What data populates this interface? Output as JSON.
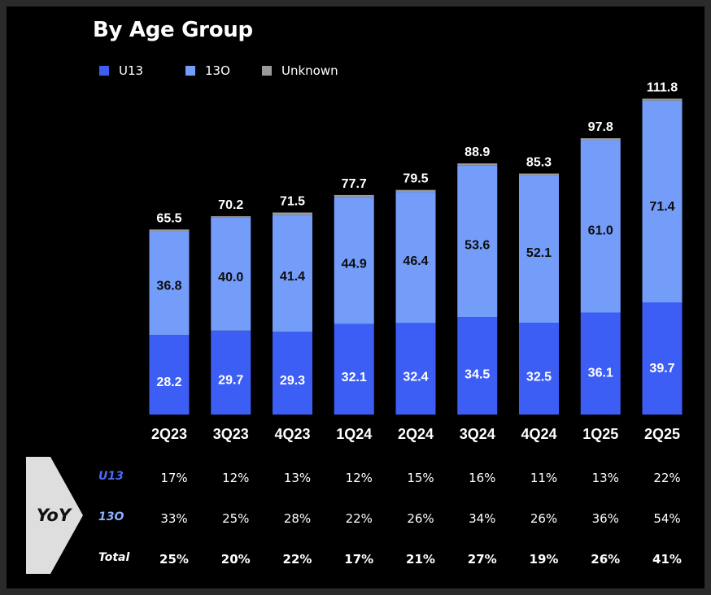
{
  "title": "By Age Group",
  "colors": {
    "U13": "#3c5ef5",
    "13O": "#749cf9",
    "Unknown": "#9a9a9a",
    "row_label_U13": "#4a6cf7",
    "row_label_13O": "#8fb0ff",
    "yoy_box": "#dedede"
  },
  "legend": [
    {
      "label": "U13",
      "color": "#3c5ef5"
    },
    {
      "label": "13O",
      "color": "#749cf9"
    },
    {
      "label": "Unknown",
      "color": "#9a9a9a"
    }
  ],
  "chart_data": {
    "type": "bar",
    "stacked": true,
    "title": "By Age Group",
    "categories": [
      "2Q23",
      "3Q23",
      "4Q23",
      "1Q24",
      "2Q24",
      "3Q24",
      "4Q24",
      "1Q25",
      "2Q25"
    ],
    "series": [
      {
        "name": "U13",
        "values": [
          28.2,
          29.7,
          29.3,
          32.1,
          32.4,
          34.5,
          32.5,
          36.1,
          39.7
        ]
      },
      {
        "name": "13O",
        "values": [
          36.8,
          40.0,
          41.4,
          44.9,
          46.4,
          53.6,
          52.1,
          61.0,
          71.4
        ]
      },
      {
        "name": "Unknown",
        "values": [
          0.5,
          0.5,
          0.8,
          0.7,
          0.7,
          0.8,
          0.7,
          0.7,
          0.7
        ]
      }
    ],
    "totals": [
      "65.5",
      "70.2",
      "71.5",
      "77.7",
      "79.5",
      "88.9",
      "85.3",
      "97.8",
      "111.8"
    ],
    "u13_labels": [
      "28.2",
      "29.7",
      "29.3",
      "32.1",
      "32.4",
      "34.5",
      "32.5",
      "36.1",
      "39.7"
    ],
    "o13_labels": [
      "36.8",
      "40.0",
      "41.4",
      "44.9",
      "46.4",
      "53.6",
      "52.1",
      "61.0",
      "71.4"
    ],
    "legend_position": "top-left",
    "grid": false,
    "ylim": [
      0,
      111.8
    ]
  },
  "yoy": {
    "label": "YoY",
    "rows": [
      {
        "name": "U13",
        "values": [
          "17%",
          "12%",
          "13%",
          "12%",
          "15%",
          "16%",
          "11%",
          "13%",
          "22%"
        ]
      },
      {
        "name": "13O",
        "values": [
          "33%",
          "25%",
          "28%",
          "22%",
          "26%",
          "34%",
          "26%",
          "36%",
          "54%"
        ]
      },
      {
        "name": "Total",
        "values": [
          "25%",
          "20%",
          "22%",
          "17%",
          "21%",
          "27%",
          "19%",
          "26%",
          "41%"
        ]
      }
    ]
  }
}
